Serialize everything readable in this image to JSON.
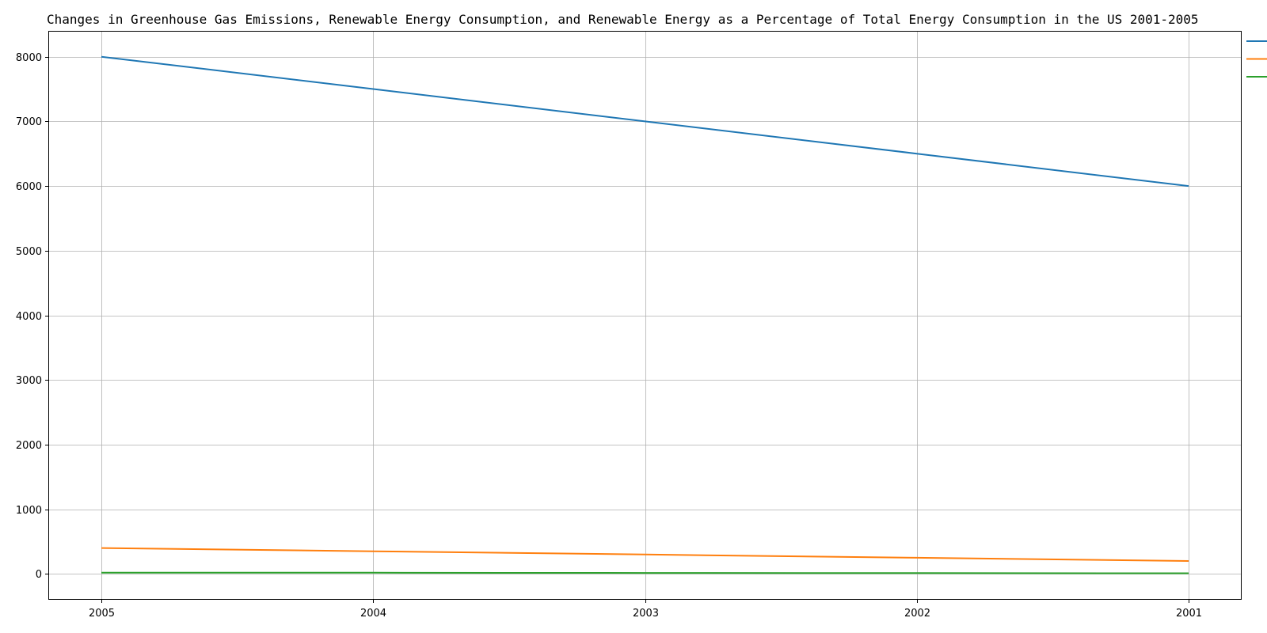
{
  "chart_data": {
    "type": "line",
    "title": "Changes in Greenhouse Gas Emissions, Renewable Energy Consumption, and Renewable Energy as a Percentage of Total Energy Consumption in the US 2001-2005",
    "xlabel": "",
    "ylabel": "",
    "categories": [
      "2005",
      "2004",
      "2003",
      "2002",
      "2001"
    ],
    "ylim": [
      -400,
      8400
    ],
    "yticks": [
      0,
      1000,
      2000,
      3000,
      4000,
      5000,
      6000,
      7000,
      8000
    ],
    "grid": true,
    "legend": "top-right (entries clipped at right edge)",
    "series": [
      {
        "color": "#1f77b4",
        "values": [
          8000,
          7500,
          7000,
          6500,
          6000
        ]
      },
      {
        "color": "#ff7f0e",
        "values": [
          400,
          350,
          300,
          250,
          200
        ]
      },
      {
        "color": "#2ca02c",
        "values": [
          20,
          18,
          15,
          12,
          10
        ]
      }
    ]
  }
}
